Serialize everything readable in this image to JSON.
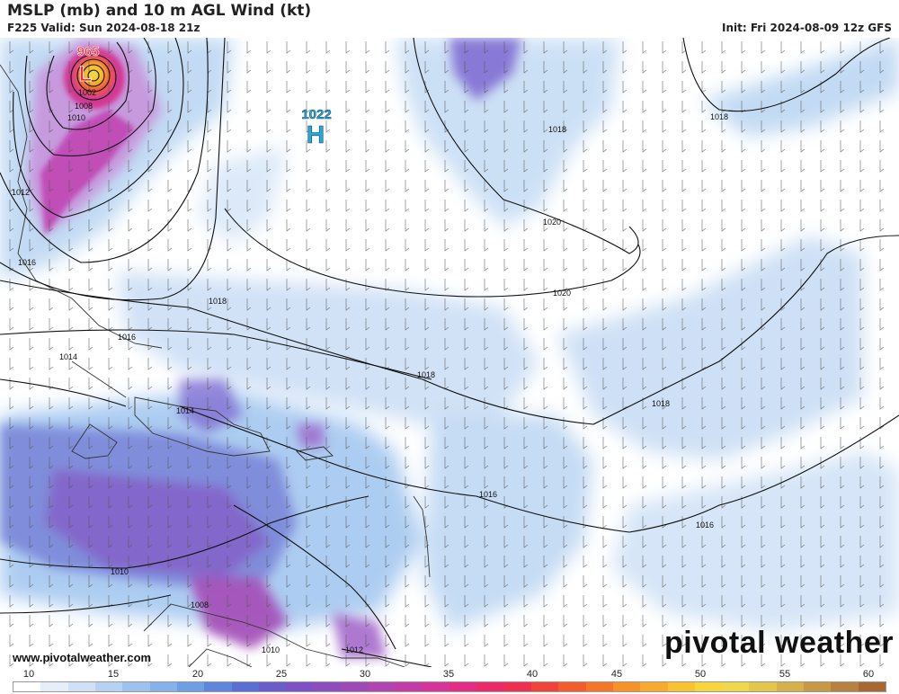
{
  "header": {
    "title": "MSLP (mb) and 10 m AGL Wind (kt)",
    "valid": "F225 Valid: Sun 2024-08-18 21z",
    "init": "Init: Fri 2024-08-09 12z GFS"
  },
  "map": {
    "low": {
      "letter": "L",
      "value": "965"
    },
    "high": {
      "letter": "H",
      "value": "1022"
    },
    "isobar_labels": [
      "1002",
      "1008",
      "1010",
      "1012",
      "1016",
      "1018",
      "1018",
      "1018",
      "1020",
      "1020",
      "1016",
      "1014",
      "1014",
      "1018",
      "1016",
      "1016",
      "1010",
      "1008",
      "1010",
      "1012"
    ]
  },
  "footer": {
    "site": "www.pivotalweather.com",
    "brand": "pivotal weather"
  },
  "colorbar": {
    "ticks": [
      "10",
      "15",
      "20",
      "25",
      "30",
      "35",
      "40",
      "45",
      "50",
      "55",
      "60"
    ],
    "colors": [
      "#ffffff",
      "#e6eefa",
      "#cfe0f7",
      "#b5d2f3",
      "#9cc3ef",
      "#84b3eb",
      "#6b9fe6",
      "#5d86de",
      "#5a6fd6",
      "#6a5ccc",
      "#7c52c6",
      "#8d4cc0",
      "#a048ba",
      "#b342b3",
      "#c63aa8",
      "#d8339a",
      "#e42c84",
      "#ec2a6a",
      "#f02e4e",
      "#f24338",
      "#f45c2c",
      "#f67628",
      "#f89128",
      "#f9aa2a",
      "#fac32e",
      "#f8d53a",
      "#f0d848",
      "#e4c64a",
      "#d6b048",
      "#c89844",
      "#ba803e",
      "#a8682e"
    ]
  }
}
